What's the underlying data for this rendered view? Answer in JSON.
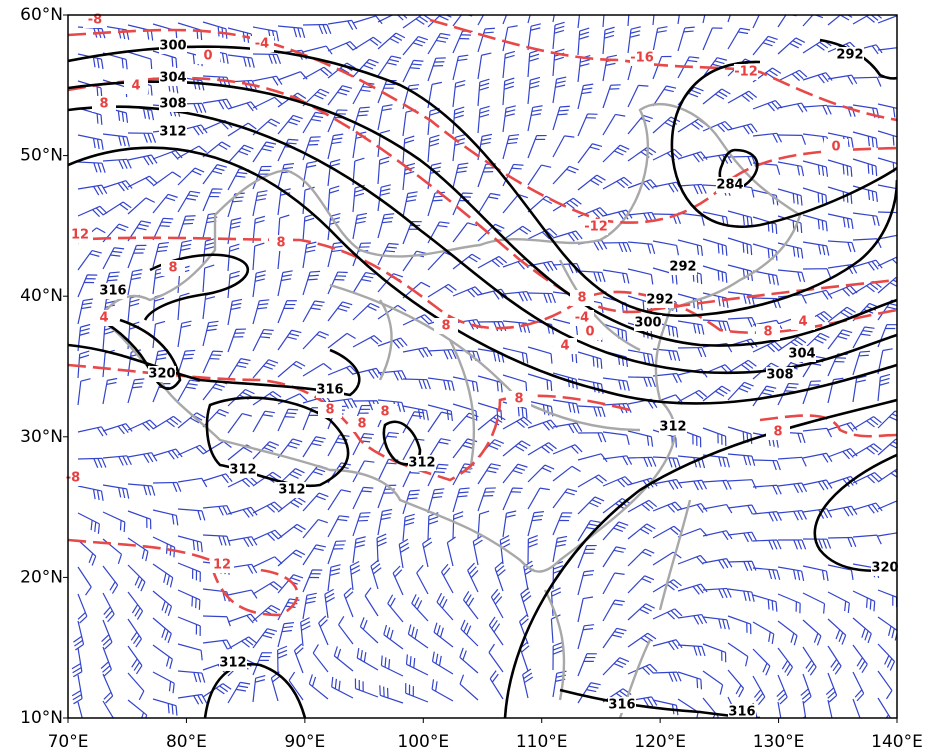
{
  "axes": {
    "lat_ticks": [
      {
        "value": 10,
        "label": "10°N"
      },
      {
        "value": 20,
        "label": "20°N"
      },
      {
        "value": 30,
        "label": "30°N"
      },
      {
        "value": 40,
        "label": "40°N"
      },
      {
        "value": 50,
        "label": "50°N"
      },
      {
        "value": 60,
        "label": "60°N"
      }
    ],
    "lon_ticks": [
      {
        "value": 70,
        "label": "70°E"
      },
      {
        "value": 80,
        "label": "80°E"
      },
      {
        "value": 90,
        "label": "90°E"
      },
      {
        "value": 100,
        "label": "100°E"
      },
      {
        "value": 110,
        "label": "110°E"
      },
      {
        "value": 120,
        "label": "120°E"
      },
      {
        "value": 130,
        "label": "130°E"
      },
      {
        "value": 140,
        "label": "140°E"
      }
    ]
  },
  "contours": {
    "height_labels": [
      "300",
      "304",
      "308",
      "312",
      "316",
      "320",
      "316",
      "312",
      "312",
      "312",
      "312",
      "308",
      "304",
      "300",
      "292",
      "292",
      "284",
      "292",
      "320",
      "316",
      "312",
      "316"
    ],
    "temperature_labels": [
      "-8",
      "-4",
      "0",
      "4",
      "8",
      "12",
      "8",
      "8",
      "4",
      "8",
      "8",
      "8",
      "8",
      "8",
      "-16",
      "-12",
      "-12",
      "0",
      "8",
      "-4",
      "0",
      "4",
      "8",
      "4",
      "8",
      "-8",
      "12"
    ]
  }
}
